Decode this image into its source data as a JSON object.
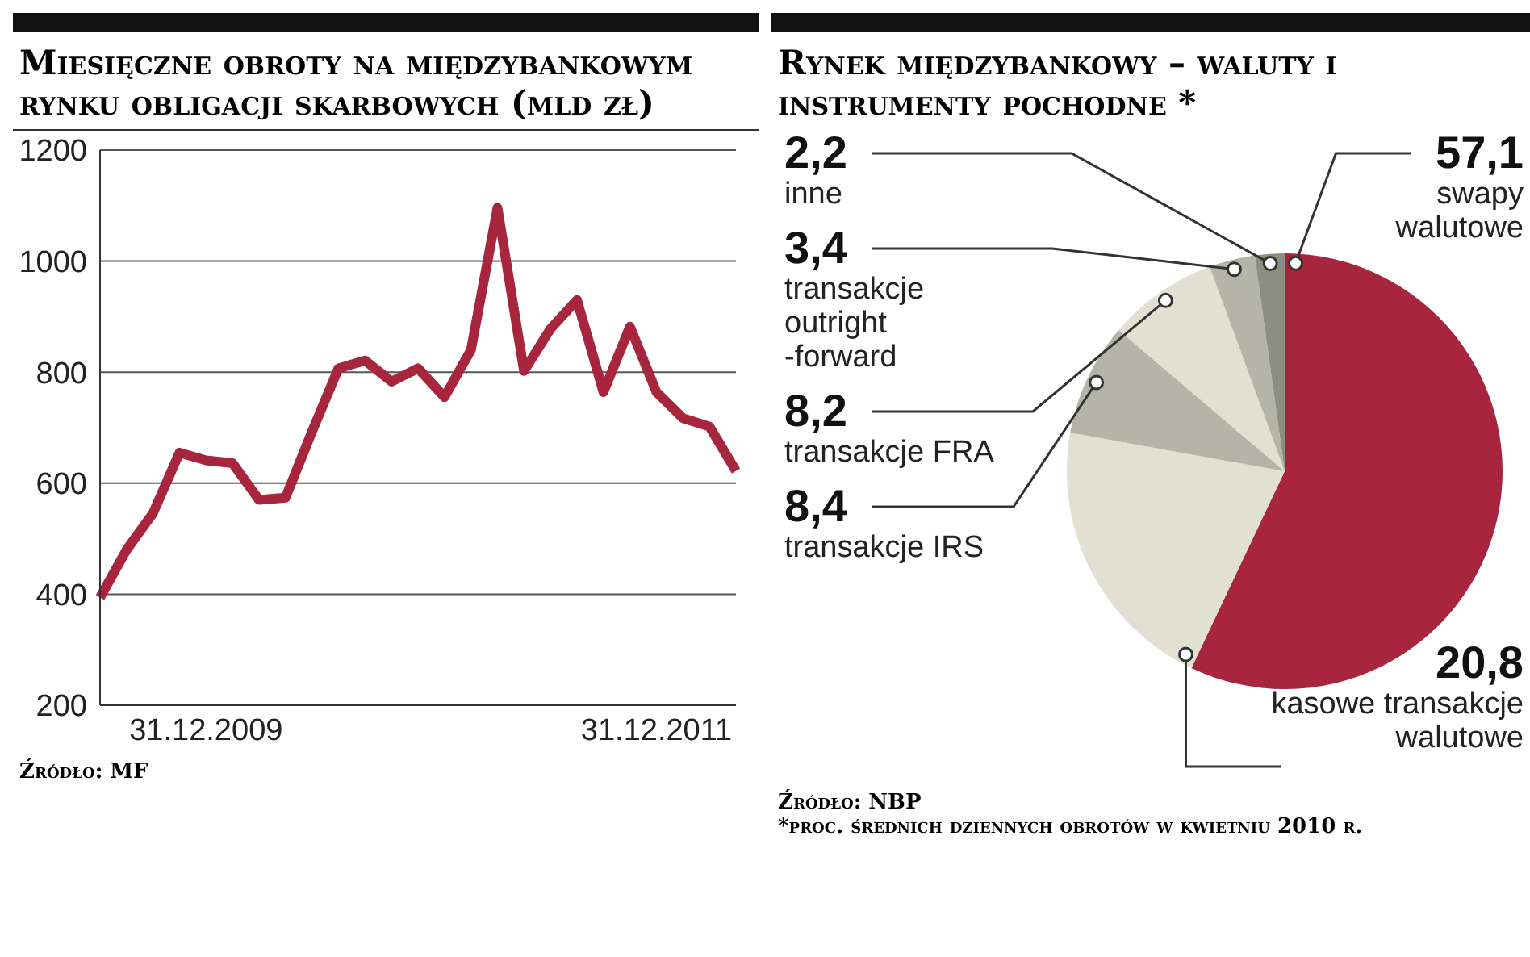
{
  "chart_data": [
    {
      "type": "line",
      "title": "Miesięczne obroty na międzybankowym rynku obligacji skarbowych (mld zł)",
      "categories": [
        null,
        null,
        null,
        null,
        "31.12.2009",
        null,
        null,
        null,
        null,
        null,
        null,
        null,
        null,
        null,
        null,
        null,
        null,
        null,
        null,
        null,
        null,
        "31.12.2011",
        null,
        null,
        null
      ],
      "values": [
        394,
        480,
        546,
        655,
        641,
        636,
        570,
        574,
        693,
        807,
        821,
        783,
        807,
        755,
        840,
        1096,
        802,
        878,
        930,
        764,
        882,
        764,
        717,
        702,
        622
      ],
      "color": "#a8253e",
      "ylim": [
        200,
        1200
      ],
      "yticks": [
        200,
        400,
        600,
        800,
        1000,
        1200
      ],
      "grid": "y",
      "annotations": [
        "Źródło: MF"
      ]
    },
    {
      "type": "pie",
      "title": "Rynek międzybankowy – waluty i instrumenty pochodne *",
      "categories": [
        "swapy walutowe",
        "kasowe transakcje walutowe",
        "transakcje IRS",
        "transakcje FRA",
        "transakcje outright -forward",
        "inne"
      ],
      "values": [
        57.1,
        20.8,
        8.4,
        8.2,
        3.4,
        2.2
      ],
      "value_labels": [
        "57,1",
        "20,8",
        "8,4",
        "8,2",
        "3,4",
        "2,2"
      ],
      "colors": [
        "#a8253e",
        "#e2e0d3",
        "#b4b5a8",
        "#e2e0d3",
        "#b4b5a8",
        "#8b8e81"
      ],
      "annotations": [
        "Źródło: NBP",
        "*proc. średnich dziennych obrotów w kwietniu 2010 r."
      ]
    }
  ]
}
